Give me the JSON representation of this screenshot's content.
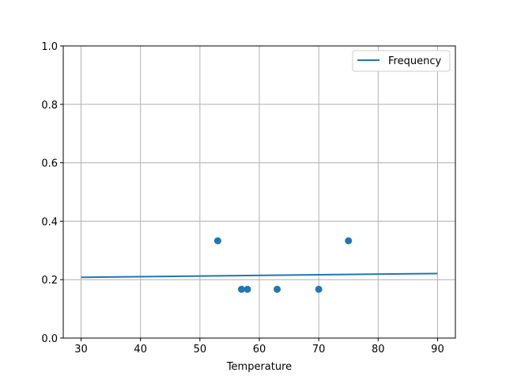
{
  "chart_data": {
    "type": "scatter",
    "title": "",
    "xlabel": "Temperature",
    "ylabel": "",
    "xlim": [
      27,
      93
    ],
    "ylim": [
      0,
      1
    ],
    "xticks": [
      30,
      40,
      50,
      60,
      70,
      80,
      90
    ],
    "yticks": [
      0.0,
      0.2,
      0.4,
      0.6,
      0.8,
      1.0
    ],
    "grid": true,
    "legend": {
      "placement": "top-right",
      "entries": [
        "Frequency"
      ]
    },
    "color": "#1f77b4",
    "scatter_points": {
      "x": [
        53,
        57,
        58,
        63,
        70,
        75
      ],
      "y": [
        0.333,
        0.167,
        0.167,
        0.167,
        0.167,
        0.333
      ]
    },
    "series": [
      {
        "name": "Frequency",
        "type": "line",
        "x": [
          30,
          90
        ],
        "y": [
          0.208,
          0.221
        ]
      }
    ]
  }
}
